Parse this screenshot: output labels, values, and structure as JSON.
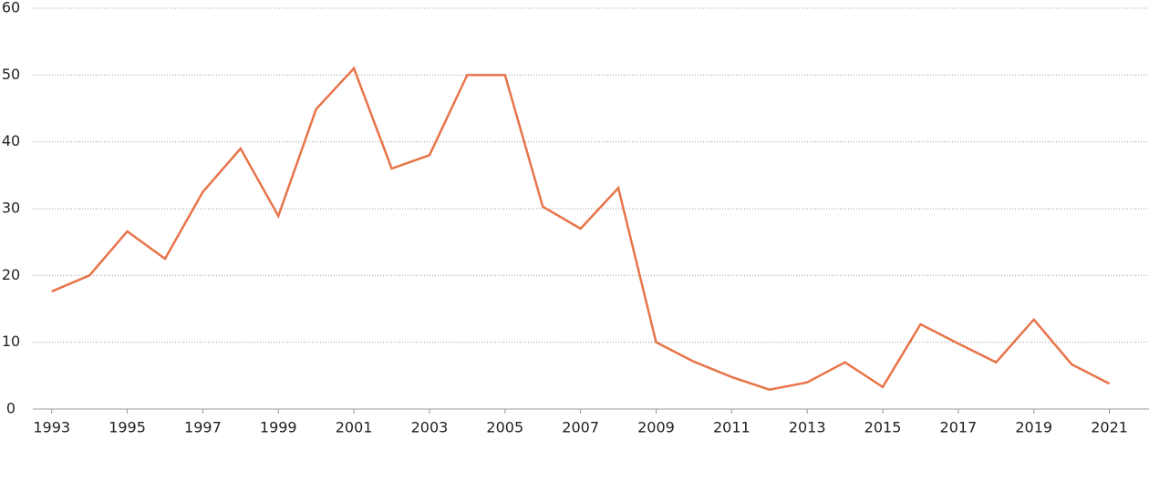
{
  "chart_data": {
    "type": "line",
    "x": [
      1993,
      1994,
      1995,
      1996,
      1997,
      1998,
      1999,
      2000,
      2001,
      2002,
      2003,
      2004,
      2005,
      2006,
      2007,
      2008,
      2009,
      2010,
      2011,
      2012,
      2013,
      2014,
      2015,
      2016,
      2017,
      2018,
      2019,
      2020,
      2021
    ],
    "values": [
      17.6,
      20.0,
      26.6,
      22.5,
      32.5,
      39.0,
      28.9,
      44.9,
      51.0,
      36.0,
      38.0,
      50.0,
      50.0,
      30.3,
      27.0,
      33.1,
      10.0,
      7.1,
      4.8,
      2.9,
      4.0,
      7.0,
      3.3,
      12.7,
      9.8,
      7.0,
      13.4,
      6.7,
      3.8
    ],
    "color": "#e8744a",
    "xlim": [
      1992.5,
      2022
    ],
    "xticks": [
      1993,
      1995,
      1997,
      1999,
      2001,
      2003,
      2005,
      2007,
      2009,
      2011,
      2013,
      2015,
      2017,
      2019,
      2021
    ],
    "ylim": [
      0,
      60
    ],
    "yticks": [
      0,
      10,
      20,
      30,
      40,
      50,
      60
    ],
    "grid": true
  }
}
